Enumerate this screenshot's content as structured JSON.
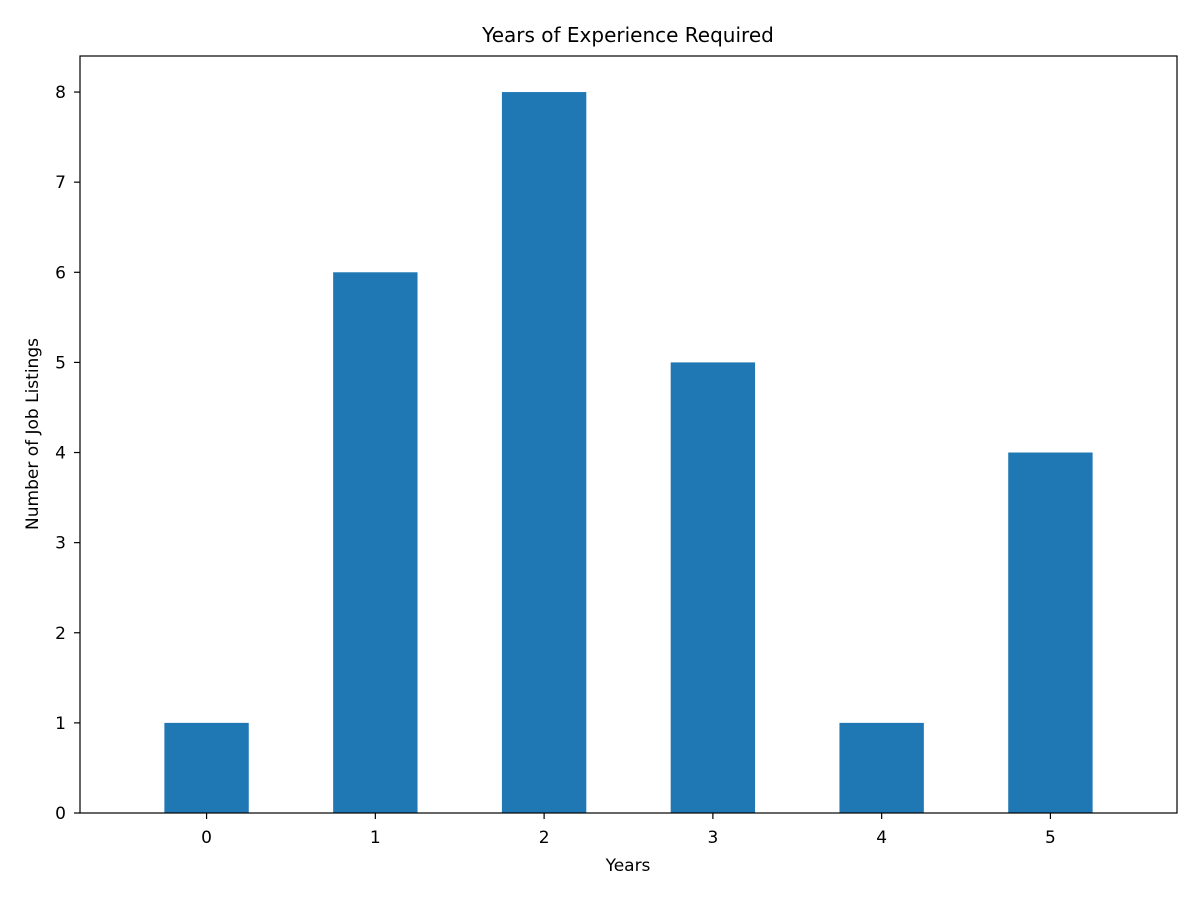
{
  "chart_data": {
    "type": "bar",
    "title": "Years of Experience Required",
    "xlabel": "Years",
    "ylabel": "Number of Job Listings",
    "categories": [
      "0",
      "1",
      "2",
      "3",
      "4",
      "5"
    ],
    "values": [
      1,
      6,
      8,
      5,
      1,
      4
    ],
    "ylim": [
      0,
      8.4
    ],
    "yticks": [
      "0",
      "1",
      "2",
      "3",
      "4",
      "5",
      "6",
      "7",
      "8"
    ],
    "grid": false,
    "legend": "none",
    "bar_color": "#1f77b4"
  }
}
